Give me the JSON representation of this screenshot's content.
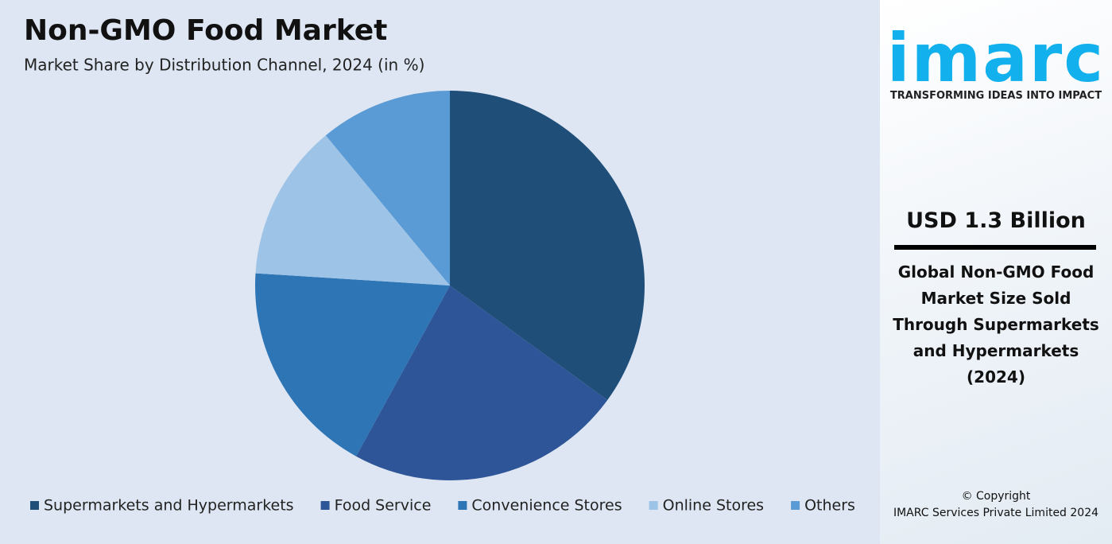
{
  "chart_data": {
    "type": "pie",
    "title": "Non-GMO Food Market",
    "subtitle": "Market Share by Distribution Channel, 2024 (in %)",
    "categories": [
      "Supermarkets and Hypermarkets",
      "Food Service",
      "Convenience Stores",
      "Online Stores",
      "Others"
    ],
    "values": [
      35,
      23,
      18,
      13,
      11
    ],
    "colors": [
      "#1f4e79",
      "#2e5597",
      "#2e75b6",
      "#9dc3e6",
      "#5b9bd5"
    ],
    "legend": "bottom"
  },
  "sidebar": {
    "logo": "imarc",
    "tagline": "TRANSFORMING IDEAS INTO IMPACT",
    "headline": "USD 1.3 Billion",
    "description": "Global Non-GMO Food Market Size Sold Through Supermarkets and Hypermarkets (2024)",
    "copyright": "© Copyright",
    "company": "IMARC Services Private Limited 2024"
  }
}
